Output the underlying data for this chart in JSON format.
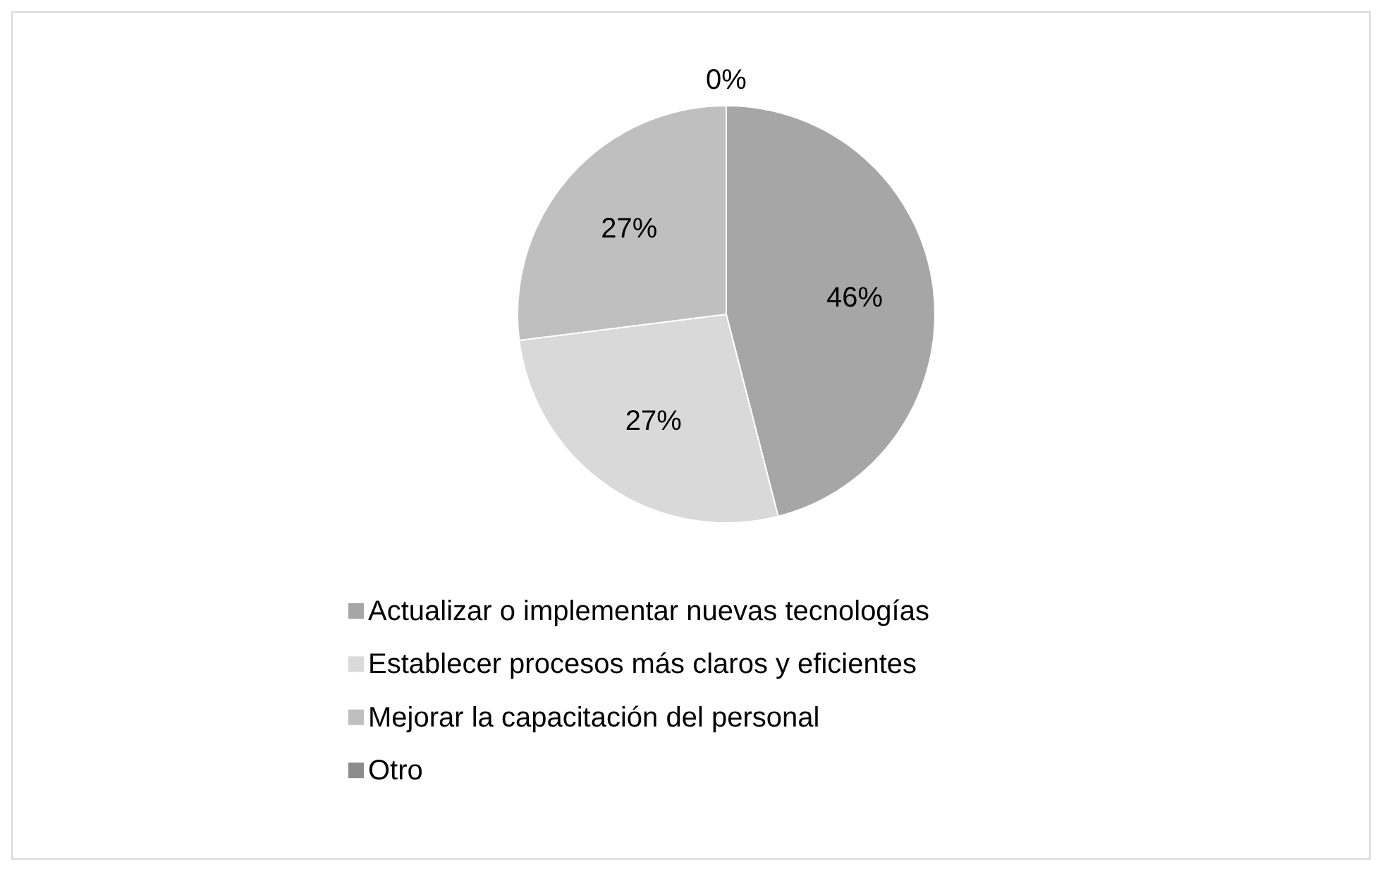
{
  "chart_data": {
    "type": "pie",
    "categories": [
      "Actualizar o implementar nuevas tecnologías",
      "Establecer procesos más claros y eficientes",
      "Mejorar la capacitación del personal",
      "Otro"
    ],
    "values": [
      46,
      27,
      27,
      0
    ],
    "colors": [
      "#a6a6a6",
      "#d9d9d9",
      "#bfbfbf",
      "#8c8c8c"
    ],
    "value_labels": [
      "46%",
      "27%",
      "27%",
      "0%"
    ],
    "legend": "bottom"
  }
}
